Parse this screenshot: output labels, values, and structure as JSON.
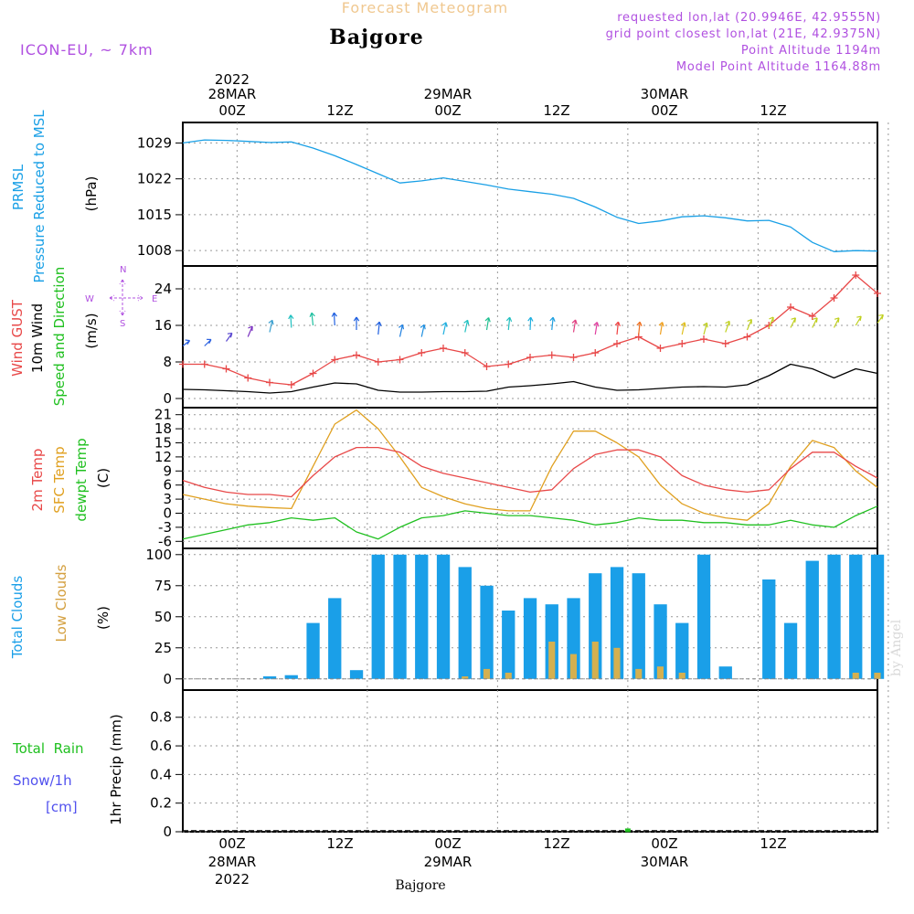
{
  "header": {
    "forecast_title": "Forecast Meteogram",
    "location": "Bajgore",
    "model": "ICON-EU, ~ 7km",
    "requested": "requested lon,lat (20.9946E, 42.9555N)",
    "grid": "grid point closest lon,lat (21E, 42.9375N)",
    "point_alt": "Point Altitude 1194m",
    "model_alt": "Model Point Altitude 1164.88m",
    "watermark": "by Angel",
    "footer_location": "Bajgore"
  },
  "time_axis": {
    "top_year": "2022",
    "top_labels": [
      "28MAR",
      "00Z",
      "12Z",
      "29MAR",
      "00Z",
      "12Z",
      "30MAR",
      "00Z",
      "12Z"
    ],
    "bottom_labels": [
      "00Z",
      "12Z",
      "00Z",
      "12Z",
      "00Z",
      "12Z"
    ],
    "bottom_dates": [
      "28MAR",
      "29MAR",
      "30MAR"
    ],
    "bottom_year": "2022",
    "start_hour": -5,
    "end_hour": 59,
    "grid_hours": [
      0,
      12,
      24,
      36,
      48,
      60
    ]
  },
  "colors": {
    "pressure": "#1aa0e6",
    "gust": "#e84848",
    "wind": "#000000",
    "temp": "#e84848",
    "sfc": "#e0a020",
    "dewpt": "#20c020",
    "total_clouds": "#1a9fe8",
    "low_clouds": "#d4b050",
    "rain": "#20c020",
    "snow": "#5050ee",
    "meta": "#b050e0",
    "title_orange": "#f0c890"
  },
  "chart_data": [
    {
      "type": "line",
      "name": "pressure",
      "ylabel_colored": "PRMSL",
      "ylabel_colored2": "Pressure Reduced to MSL",
      "unit": "(hPa)",
      "yticks": [
        "1029",
        "1022",
        "1015",
        "1008"
      ],
      "ylim": [
        1005,
        1033
      ],
      "x_hours": [
        -5,
        -3,
        -1,
        1,
        3,
        5,
        7,
        9,
        11,
        13,
        15,
        17,
        19,
        21,
        23,
        25,
        27,
        29,
        31,
        33,
        35,
        37,
        39,
        41,
        43,
        45,
        47,
        49,
        51,
        53,
        55,
        57,
        59
      ],
      "values": [
        1029.0,
        1029.6,
        1029.5,
        1029.3,
        1029.1,
        1029.2,
        1028.0,
        1026.5,
        1024.8,
        1023.0,
        1021.2,
        1021.6,
        1022.2,
        1021.5,
        1020.8,
        1020.0,
        1019.5,
        1019.0,
        1018.2,
        1016.5,
        1014.5,
        1013.3,
        1013.8,
        1014.6,
        1014.8,
        1014.4,
        1013.8,
        1013.9,
        1012.6,
        1009.6,
        1007.8,
        1008.0,
        1007.9
      ]
    },
    {
      "type": "line",
      "name": "wind",
      "ylabel_gust": "Wind GUST",
      "ylabel_wind": "10m Wind",
      "ylabel_dir": "Speed and Direction",
      "unit": "(m/s)",
      "yticks": [
        "24",
        "16",
        "8",
        "0"
      ],
      "compass": {
        "n": "N",
        "s": "S",
        "w": "W",
        "e": "E"
      },
      "ylim": [
        -2,
        29
      ],
      "x_hours": [
        -5,
        -3,
        -1,
        1,
        3,
        5,
        7,
        9,
        11,
        13,
        15,
        17,
        19,
        21,
        23,
        25,
        27,
        29,
        31,
        33,
        35,
        37,
        39,
        41,
        43,
        45,
        47,
        49,
        51,
        53,
        55,
        57,
        59
      ],
      "gust": [
        7.5,
        7.5,
        6.5,
        4.5,
        3.5,
        3.0,
        5.5,
        8.5,
        9.5,
        8.0,
        8.5,
        10.0,
        11.0,
        10.0,
        7.0,
        7.5,
        9.0,
        9.5,
        9.0,
        10.0,
        12.0,
        13.5,
        11.0,
        12.0,
        13.0,
        12.0,
        13.5,
        16.0,
        20.0,
        18.0,
        22.0,
        27.0,
        23.0
      ],
      "speed": [
        2.0,
        1.9,
        1.7,
        1.5,
        1.2,
        1.5,
        2.5,
        3.4,
        3.2,
        1.8,
        1.4,
        1.4,
        1.5,
        1.5,
        1.6,
        2.5,
        2.8,
        3.2,
        3.7,
        2.5,
        1.8,
        1.9,
        2.2,
        2.5,
        2.6,
        2.5,
        3.0,
        5.0,
        7.5,
        6.5,
        4.5,
        6.5,
        5.5
      ],
      "arrow_height": [
        11.5,
        11.5,
        12.5,
        13.5,
        14.5,
        15.5,
        16.0,
        16.0,
        15.0,
        14.0,
        13.5,
        13.5,
        14.0,
        14.5,
        15.0,
        15.0,
        15.0,
        15.0,
        14.5,
        14.0,
        14.0,
        14.0,
        14.0,
        14.0,
        14.0,
        14.5,
        15.0,
        15.5,
        15.5,
        15.5,
        15.5,
        16.0,
        16.5
      ],
      "arrow_dir_deg": [
        25,
        30,
        40,
        55,
        70,
        95,
        100,
        95,
        90,
        80,
        70,
        70,
        70,
        70,
        75,
        80,
        85,
        80,
        75,
        75,
        80,
        80,
        75,
        70,
        65,
        60,
        55,
        55,
        50,
        50,
        50,
        45,
        40
      ],
      "arrow_colors": [
        "#2a60e0",
        "#2a60e0",
        "#5a48d0",
        "#7a30c0",
        "#3aa0d0",
        "#20c0c0",
        "#20c0a0",
        "#2060e0",
        "#2060e0",
        "#2060e0",
        "#2080e0",
        "#2090e0",
        "#20b0e0",
        "#20c0c0",
        "#20c090",
        "#20c0c0",
        "#20b0e0",
        "#20a0e0",
        "#e04080",
        "#e040a0",
        "#f04040",
        "#f07020",
        "#f0a020",
        "#e0c020",
        "#c0d020",
        "#c0d020",
        "#c0d020",
        "#c0d020",
        "#c0d020",
        "#c0d020",
        "#c0d020",
        "#c0d020",
        "#c0d020"
      ]
    },
    {
      "type": "line",
      "name": "temperature",
      "ylabel_temp": "2m Temp",
      "ylabel_sfc": "SFC Temp",
      "ylabel_dew": "dewpt Temp",
      "unit": "(C)",
      "yticks": [
        "21",
        "18",
        "15",
        "12",
        "9",
        "6",
        "3",
        "0",
        "-3",
        "-6"
      ],
      "ylim": [
        -7.5,
        22.5
      ],
      "x_hours": [
        -5,
        -3,
        -1,
        1,
        3,
        5,
        7,
        9,
        11,
        13,
        15,
        17,
        19,
        21,
        23,
        25,
        27,
        29,
        31,
        33,
        35,
        37,
        39,
        41,
        43,
        45,
        47,
        49,
        51,
        53,
        55,
        57,
        59
      ],
      "temp": [
        7.0,
        5.5,
        4.5,
        4.0,
        4.0,
        3.5,
        8.0,
        12.0,
        14.0,
        14.0,
        13.0,
        10.0,
        8.5,
        7.5,
        6.5,
        5.5,
        4.5,
        5.0,
        9.5,
        12.5,
        13.5,
        13.5,
        12.0,
        8.0,
        6.0,
        5.0,
        4.5,
        5.0,
        9.5,
        13.0,
        13.0,
        10.0,
        7.5
      ],
      "sfc": [
        4.0,
        3.0,
        2.0,
        1.5,
        1.2,
        1.0,
        10.0,
        19.0,
        22.0,
        18.0,
        12.0,
        5.5,
        3.5,
        2.0,
        1.0,
        0.5,
        0.5,
        10.0,
        17.5,
        17.5,
        15.0,
        12.0,
        6.0,
        2.0,
        0.0,
        -1.0,
        -1.5,
        2.0,
        10.0,
        15.5,
        14.0,
        9.0,
        5.5
      ],
      "dewpt": [
        -5.5,
        -4.5,
        -3.5,
        -2.5,
        -2.0,
        -1.0,
        -1.5,
        -1.0,
        -4.0,
        -5.5,
        -3.0,
        -1.0,
        -0.5,
        0.5,
        0.0,
        -0.5,
        -0.5,
        -1.0,
        -1.5,
        -2.5,
        -2.0,
        -1.0,
        -1.5,
        -1.5,
        -2.0,
        -2.0,
        -2.5,
        -2.5,
        -1.5,
        -2.5,
        -3.0,
        -0.5,
        1.5
      ]
    },
    {
      "type": "bar",
      "name": "clouds",
      "ylabel_total": "Total Clouds",
      "ylabel_low": "Low Clouds",
      "unit": "(%)",
      "yticks": [
        "100",
        "75",
        "50",
        "25",
        "0"
      ],
      "ylim": [
        -9,
        105
      ],
      "x_hours": [
        -5,
        -3,
        -1,
        1,
        3,
        5,
        7,
        9,
        11,
        13,
        15,
        17,
        19,
        21,
        23,
        25,
        27,
        29,
        31,
        33,
        35,
        37,
        39,
        41,
        43,
        45,
        47,
        49,
        51,
        53,
        55,
        57,
        59
      ],
      "total": [
        0,
        0,
        0,
        0,
        2,
        3,
        45,
        65,
        7,
        100,
        100,
        100,
        100,
        90,
        75,
        55,
        65,
        60,
        65,
        85,
        90,
        85,
        60,
        45,
        100,
        10,
        0,
        80,
        45,
        95,
        100,
        100,
        100
      ],
      "low": [
        0,
        0,
        0,
        0,
        0,
        0,
        0,
        0,
        0,
        0,
        0,
        0,
        0,
        2,
        8,
        5,
        0,
        30,
        20,
        30,
        25,
        8,
        10,
        5,
        0,
        0,
        0,
        0,
        0,
        0,
        0,
        5,
        5
      ]
    },
    {
      "type": "bar",
      "name": "precip",
      "ylabel_rain": "Total  Rain",
      "ylabel_snow": "Snow/1h",
      "ylabel_snow_unit": "[cm]",
      "ylabel_precip": "1hr Precip (mm)",
      "yticks": [
        "0.8",
        "0.6",
        "0.4",
        "0.2",
        "0"
      ],
      "ylim": [
        0,
        0.99
      ],
      "marker_hour": 36,
      "marker_value": 0.01
    }
  ]
}
